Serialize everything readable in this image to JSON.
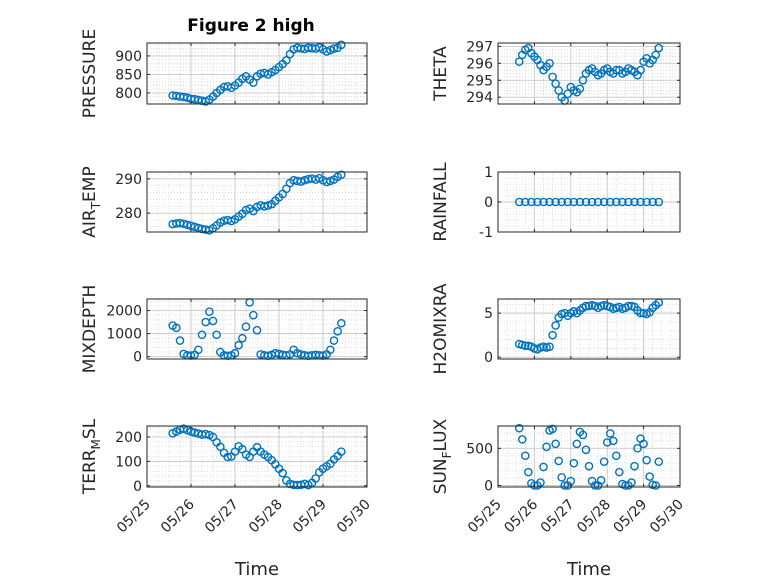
{
  "figure": {
    "title": "Figure 2 high",
    "marker_color": "#0072BD",
    "axis_color": "#262626",
    "grid_color": "#c8c8c8"
  },
  "chart_data": [
    {
      "type": "scatter",
      "ylabel": "PRESSURE",
      "title": "Figure 2 high",
      "xlim": [
        "05/25",
        "05/30"
      ],
      "ylim": [
        770,
        935
      ],
      "yticks": [
        "800",
        "850",
        "900"
      ],
      "ytick_values": [
        800,
        850,
        900
      ],
      "grid": "on",
      "x": [
        "05/25 14:00",
        "05/25 16:00",
        "05/25 18:00",
        "05/25 20:00",
        "05/25 22:00",
        "05/26 00:00",
        "05/26 02:00",
        "05/26 04:00",
        "05/26 06:00",
        "05/26 08:00",
        "05/26 10:00",
        "05/26 12:00",
        "05/26 14:00",
        "05/26 16:00",
        "05/26 18:00",
        "05/26 20:00",
        "05/26 22:00",
        "05/27 00:00",
        "05/27 02:00",
        "05/27 04:00",
        "05/27 06:00",
        "05/27 08:00",
        "05/27 10:00",
        "05/27 12:00",
        "05/27 14:00",
        "05/27 16:00",
        "05/27 18:00",
        "05/27 20:00",
        "05/27 22:00",
        "05/28 00:00",
        "05/28 02:00",
        "05/28 04:00",
        "05/28 06:00",
        "05/28 08:00",
        "05/28 10:00",
        "05/28 12:00",
        "05/28 14:00",
        "05/28 16:00",
        "05/28 18:00",
        "05/28 20:00",
        "05/28 22:00",
        "05/29 00:00",
        "05/29 02:00",
        "05/29 04:00",
        "05/29 06:00",
        "05/29 08:00",
        "05/29 10:00"
      ],
      "y": [
        793,
        792,
        790,
        789,
        787,
        784,
        783,
        781,
        779,
        777,
        782,
        790,
        800,
        808,
        816,
        818,
        814,
        820,
        828,
        838,
        845,
        836,
        828,
        845,
        852,
        854,
        850,
        856,
        862,
        870,
        878,
        888,
        905,
        918,
        922,
        920,
        919,
        922,
        921,
        920,
        923,
        918,
        912,
        916,
        920,
        922,
        930
      ]
    },
    {
      "type": "scatter",
      "ylabel": "THETA",
      "xlim": [
        "05/25",
        "05/30"
      ],
      "ylim": [
        293.6,
        297.2
      ],
      "yticks": [
        "294",
        "295",
        "296",
        "297"
      ],
      "ytick_values": [
        294,
        295,
        296,
        297
      ],
      "grid": "on",
      "x": [
        "05/25 14:00",
        "05/25 16:00",
        "05/25 18:00",
        "05/25 20:00",
        "05/25 22:00",
        "05/26 00:00",
        "05/26 02:00",
        "05/26 04:00",
        "05/26 06:00",
        "05/26 08:00",
        "05/26 10:00",
        "05/26 12:00",
        "05/26 14:00",
        "05/26 16:00",
        "05/26 18:00",
        "05/26 20:00",
        "05/26 22:00",
        "05/27 00:00",
        "05/27 02:00",
        "05/27 04:00",
        "05/27 06:00",
        "05/27 08:00",
        "05/27 10:00",
        "05/27 12:00",
        "05/27 14:00",
        "05/27 16:00",
        "05/27 18:00",
        "05/27 20:00",
        "05/27 22:00",
        "05/28 00:00",
        "05/28 02:00",
        "05/28 04:00",
        "05/28 06:00",
        "05/28 08:00",
        "05/28 10:00",
        "05/28 12:00",
        "05/28 14:00",
        "05/28 16:00",
        "05/28 18:00",
        "05/28 20:00",
        "05/28 22:00",
        "05/29 00:00",
        "05/29 02:00",
        "05/29 04:00",
        "05/29 06:00",
        "05/29 08:00",
        "05/29 10:00"
      ],
      "y": [
        296.1,
        296.5,
        296.8,
        296.9,
        296.6,
        296.4,
        296.2,
        295.9,
        295.6,
        295.8,
        296.0,
        295.2,
        294.8,
        294.4,
        294.0,
        293.8,
        294.2,
        294.6,
        294.4,
        294.3,
        294.5,
        295.0,
        295.4,
        295.6,
        295.7,
        295.5,
        295.3,
        295.4,
        295.6,
        295.7,
        295.5,
        295.4,
        295.6,
        295.6,
        295.4,
        295.5,
        295.7,
        295.6,
        295.5,
        295.3,
        295.6,
        296.1,
        296.3,
        296.0,
        296.2,
        296.5,
        296.9
      ]
    },
    {
      "type": "scatter",
      "ylabel": "AIR_TEMP",
      "ylabel_parts": [
        "AIR",
        "T",
        "EMP"
      ],
      "xlim": [
        "05/25",
        "05/30"
      ],
      "ylim": [
        274.5,
        292
      ],
      "yticks": [
        "280",
        "290"
      ],
      "ytick_values": [
        280,
        290
      ],
      "grid": "on",
      "x": [
        "05/25 14:00",
        "05/25 16:00",
        "05/25 18:00",
        "05/25 20:00",
        "05/25 22:00",
        "05/26 00:00",
        "05/26 02:00",
        "05/26 04:00",
        "05/26 06:00",
        "05/26 08:00",
        "05/26 10:00",
        "05/26 12:00",
        "05/26 14:00",
        "05/26 16:00",
        "05/26 18:00",
        "05/26 20:00",
        "05/26 22:00",
        "05/27 00:00",
        "05/27 02:00",
        "05/27 04:00",
        "05/27 06:00",
        "05/27 08:00",
        "05/27 10:00",
        "05/27 12:00",
        "05/27 14:00",
        "05/27 16:00",
        "05/27 18:00",
        "05/27 20:00",
        "05/27 22:00",
        "05/28 00:00",
        "05/28 02:00",
        "05/28 04:00",
        "05/28 06:00",
        "05/28 08:00",
        "05/28 10:00",
        "05/28 12:00",
        "05/28 14:00",
        "05/28 16:00",
        "05/28 18:00",
        "05/28 20:00",
        "05/28 22:00",
        "05/29 00:00",
        "05/29 02:00",
        "05/29 04:00",
        "05/29 06:00",
        "05/29 08:00",
        "05/29 10:00"
      ],
      "y": [
        276.8,
        277.0,
        277.1,
        276.9,
        276.6,
        276.3,
        276.0,
        275.7,
        275.4,
        275.2,
        275.0,
        275.6,
        276.4,
        277.3,
        277.8,
        278.0,
        277.7,
        278.2,
        279.0,
        279.8,
        280.9,
        281.3,
        280.6,
        281.8,
        282.3,
        282.0,
        282.2,
        282.6,
        283.6,
        284.6,
        285.6,
        287.1,
        288.8,
        289.6,
        289.4,
        289.2,
        289.6,
        289.9,
        290.1,
        289.8,
        290.2,
        289.6,
        289.1,
        289.4,
        289.8,
        290.6,
        291.2
      ]
    },
    {
      "type": "scatter",
      "ylabel": "RAINFALL",
      "xlim": [
        "05/25",
        "05/30"
      ],
      "ylim": [
        -1,
        1
      ],
      "yticks": [
        "-1",
        "0",
        "1"
      ],
      "ytick_values": [
        -1,
        0,
        1
      ],
      "grid": "on",
      "x": [
        "05/25 14:00",
        "05/25 18:00",
        "05/25 22:00",
        "05/26 02:00",
        "05/26 06:00",
        "05/26 10:00",
        "05/26 14:00",
        "05/26 18:00",
        "05/26 22:00",
        "05/27 02:00",
        "05/27 06:00",
        "05/27 10:00",
        "05/27 14:00",
        "05/27 18:00",
        "05/27 22:00",
        "05/28 02:00",
        "05/28 06:00",
        "05/28 10:00",
        "05/28 14:00",
        "05/28 18:00",
        "05/28 22:00",
        "05/29 02:00",
        "05/29 06:00",
        "05/29 10:00"
      ],
      "y": [
        0,
        0,
        0,
        0,
        0,
        0,
        0,
        0,
        0,
        0,
        0,
        0,
        0,
        0,
        0,
        0,
        0,
        0,
        0,
        0,
        0,
        0,
        0,
        0
      ]
    },
    {
      "type": "scatter",
      "ylabel": "MIXDEPTH",
      "xlim": [
        "05/25",
        "05/30"
      ],
      "ylim": [
        -100,
        2500
      ],
      "yticks": [
        "0",
        "1000",
        "2000"
      ],
      "ytick_values": [
        0,
        1000,
        2000
      ],
      "grid": "on",
      "x": [
        "05/25 14:00",
        "05/25 16:00",
        "05/25 18:00",
        "05/25 20:00",
        "05/25 22:00",
        "05/26 00:00",
        "05/26 02:00",
        "05/26 04:00",
        "05/26 06:00",
        "05/26 08:00",
        "05/26 10:00",
        "05/26 12:00",
        "05/26 14:00",
        "05/26 16:00",
        "05/26 18:00",
        "05/26 20:00",
        "05/26 22:00",
        "05/27 00:00",
        "05/27 02:00",
        "05/27 04:00",
        "05/27 06:00",
        "05/27 08:00",
        "05/27 10:00",
        "05/27 12:00",
        "05/27 14:00",
        "05/27 16:00",
        "05/27 18:00",
        "05/27 20:00",
        "05/27 22:00",
        "05/28 00:00",
        "05/28 02:00",
        "05/28 04:00",
        "05/28 06:00",
        "05/28 08:00",
        "05/28 10:00",
        "05/28 12:00",
        "05/28 14:00",
        "05/28 16:00",
        "05/28 18:00",
        "05/28 20:00",
        "05/28 22:00",
        "05/29 00:00",
        "05/29 02:00",
        "05/29 04:00",
        "05/29 06:00",
        "05/29 08:00",
        "05/29 10:00"
      ],
      "y": [
        1350,
        1250,
        700,
        120,
        60,
        50,
        80,
        300,
        950,
        1500,
        1950,
        1550,
        950,
        200,
        60,
        40,
        60,
        150,
        500,
        800,
        1300,
        2350,
        1800,
        1150,
        100,
        60,
        40,
        80,
        150,
        120,
        80,
        60,
        100,
        300,
        150,
        100,
        60,
        40,
        60,
        80,
        60,
        50,
        100,
        300,
        700,
        1100,
        1450
      ]
    },
    {
      "type": "scatter",
      "ylabel": "H2OMIXRA",
      "xlim": [
        "05/25",
        "05/30"
      ],
      "ylim": [
        -0.2,
        6.6
      ],
      "yticks": [
        "0",
        "5"
      ],
      "ytick_values": [
        0,
        5
      ],
      "grid": "on",
      "x": [
        "05/25 14:00",
        "05/25 16:00",
        "05/25 18:00",
        "05/25 20:00",
        "05/25 22:00",
        "05/26 00:00",
        "05/26 02:00",
        "05/26 04:00",
        "05/26 06:00",
        "05/26 08:00",
        "05/26 10:00",
        "05/26 12:00",
        "05/26 14:00",
        "05/26 16:00",
        "05/26 18:00",
        "05/26 20:00",
        "05/26 22:00",
        "05/27 00:00",
        "05/27 02:00",
        "05/27 04:00",
        "05/27 06:00",
        "05/27 08:00",
        "05/27 10:00",
        "05/27 12:00",
        "05/27 14:00",
        "05/27 16:00",
        "05/27 18:00",
        "05/27 20:00",
        "05/27 22:00",
        "05/28 00:00",
        "05/28 02:00",
        "05/28 04:00",
        "05/28 06:00",
        "05/28 08:00",
        "05/28 10:00",
        "05/28 12:00",
        "05/28 14:00",
        "05/28 16:00",
        "05/28 18:00",
        "05/28 20:00",
        "05/28 22:00",
        "05/29 00:00",
        "05/29 02:00",
        "05/29 04:00",
        "05/29 06:00",
        "05/29 08:00",
        "05/29 10:00"
      ],
      "y": [
        1.5,
        1.4,
        1.3,
        1.3,
        1.2,
        1.0,
        0.9,
        1.1,
        1.2,
        1.1,
        1.2,
        2.5,
        3.6,
        4.5,
        4.9,
        5.0,
        4.7,
        5.0,
        5.2,
        5.0,
        5.3,
        5.6,
        5.8,
        5.8,
        5.9,
        5.8,
        5.6,
        5.8,
        5.9,
        5.8,
        5.7,
        5.5,
        5.6,
        5.7,
        5.5,
        5.6,
        5.8,
        5.8,
        5.7,
        5.3,
        5.0,
        5.0,
        4.9,
        5.1,
        5.6,
        5.9,
        6.2
      ]
    },
    {
      "type": "scatter",
      "ylabel": "TERR_MSL",
      "ylabel_parts": [
        "TERR",
        "M",
        "SL"
      ],
      "xlim": [
        "05/25",
        "05/30"
      ],
      "ylim": [
        -5,
        245
      ],
      "yticks": [
        "0",
        "100",
        "200"
      ],
      "ytick_values": [
        0,
        100,
        200
      ],
      "xticks": [
        "05/25",
        "05/26",
        "05/27",
        "05/28",
        "05/29",
        "05/30"
      ],
      "xlabel": "Time",
      "grid": "on",
      "x": [
        "05/25 14:00",
        "05/25 16:00",
        "05/25 18:00",
        "05/25 20:00",
        "05/25 22:00",
        "05/26 00:00",
        "05/26 02:00",
        "05/26 04:00",
        "05/26 06:00",
        "05/26 08:00",
        "05/26 10:00",
        "05/26 12:00",
        "05/26 14:00",
        "05/26 16:00",
        "05/26 18:00",
        "05/26 20:00",
        "05/26 22:00",
        "05/27 00:00",
        "05/27 02:00",
        "05/27 04:00",
        "05/27 06:00",
        "05/27 08:00",
        "05/27 10:00",
        "05/27 12:00",
        "05/27 14:00",
        "05/27 16:00",
        "05/27 18:00",
        "05/27 20:00",
        "05/27 22:00",
        "05/28 00:00",
        "05/28 02:00",
        "05/28 04:00",
        "05/28 06:00",
        "05/28 08:00",
        "05/28 10:00",
        "05/28 12:00",
        "05/28 14:00",
        "05/28 16:00",
        "05/28 18:00",
        "05/28 20:00",
        "05/28 22:00",
        "05/29 00:00",
        "05/29 02:00",
        "05/29 04:00",
        "05/29 06:00",
        "05/29 08:00",
        "05/29 10:00"
      ],
      "y": [
        215,
        222,
        230,
        234,
        228,
        222,
        218,
        214,
        210,
        212,
        208,
        200,
        178,
        160,
        135,
        118,
        120,
        140,
        162,
        150,
        128,
        118,
        140,
        158,
        140,
        128,
        118,
        105,
        88,
        70,
        52,
        22,
        8,
        4,
        3,
        4,
        8,
        3,
        12,
        30,
        55,
        70,
        80,
        90,
        108,
        122,
        140
      ]
    },
    {
      "type": "scatter",
      "ylabel": "SUN_FLUX",
      "ylabel_parts": [
        "SUN",
        "F",
        "LUX"
      ],
      "xlim": [
        "05/25",
        "05/30"
      ],
      "ylim": [
        -20,
        800
      ],
      "yticks": [
        "0",
        "500"
      ],
      "ytick_values": [
        0,
        500
      ],
      "xticks": [
        "05/25",
        "05/26",
        "05/27",
        "05/28",
        "05/29",
        "05/30"
      ],
      "xlabel": "Time",
      "grid": "on",
      "x": [
        "05/25 14:00",
        "05/25 16:00",
        "05/25 18:00",
        "05/25 20:00",
        "05/25 22:00",
        "05/26 00:00",
        "05/26 02:00",
        "05/26 04:00",
        "05/26 06:00",
        "05/26 08:00",
        "05/26 10:00",
        "05/26 12:00",
        "05/26 14:00",
        "05/26 16:00",
        "05/26 18:00",
        "05/26 20:00",
        "05/26 22:00",
        "05/27 00:00",
        "05/27 02:00",
        "05/27 04:00",
        "05/27 06:00",
        "05/27 08:00",
        "05/27 10:00",
        "05/27 12:00",
        "05/27 14:00",
        "05/27 16:00",
        "05/27 18:00",
        "05/27 20:00",
        "05/27 22:00",
        "05/28 00:00",
        "05/28 02:00",
        "05/28 04:00",
        "05/28 06:00",
        "05/28 08:00",
        "05/28 10:00",
        "05/28 12:00",
        "05/28 14:00",
        "05/28 16:00",
        "05/28 18:00",
        "05/28 20:00",
        "05/28 22:00",
        "05/29 00:00",
        "05/29 02:00",
        "05/29 04:00",
        "05/29 06:00",
        "05/29 08:00",
        "05/29 10:00"
      ],
      "y": [
        770,
        620,
        400,
        180,
        30,
        0,
        0,
        40,
        250,
        520,
        740,
        760,
        560,
        330,
        110,
        0,
        0,
        60,
        300,
        560,
        720,
        680,
        480,
        260,
        60,
        0,
        0,
        70,
        320,
        580,
        700,
        600,
        400,
        180,
        20,
        0,
        0,
        40,
        260,
        500,
        630,
        560,
        340,
        120,
        10,
        0,
        320
      ]
    }
  ]
}
